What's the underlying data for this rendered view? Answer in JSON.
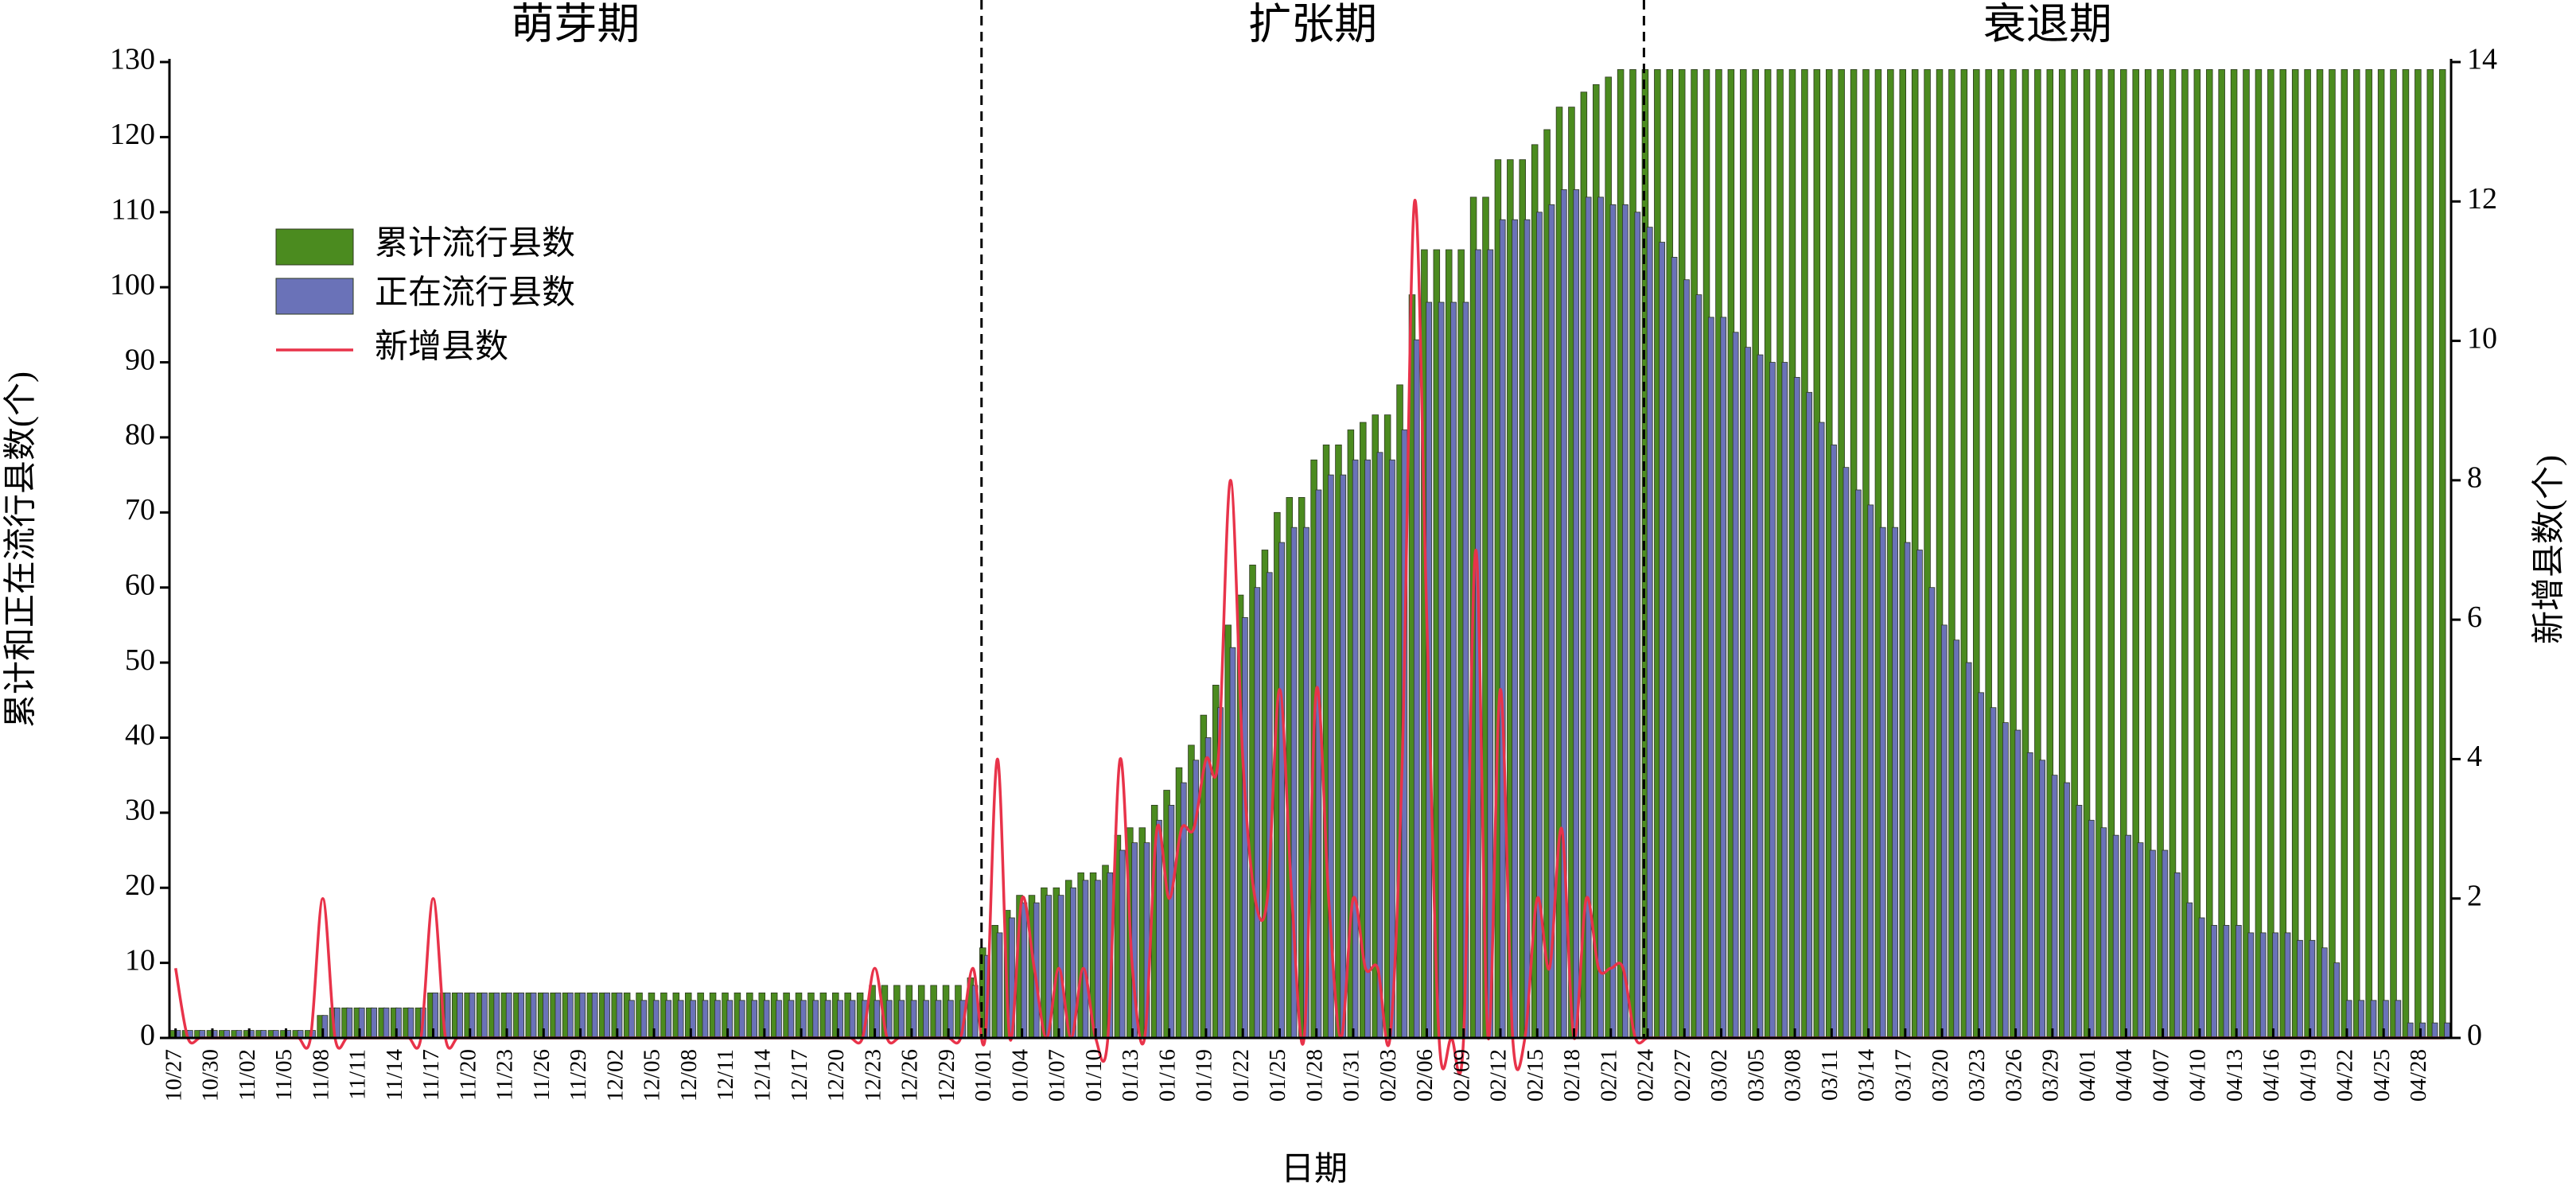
{
  "chart_data": {
    "type": "bar",
    "x_label": "日期",
    "y_label": "累计和正在流行县数(个)",
    "y2_label": "新增县数(个)",
    "legend": "upper left",
    "phases": [
      {
        "label": "萌芽期",
        "from": "10/27"
      },
      {
        "label": "扩张期",
        "from": "01/01"
      },
      {
        "label": "衰退期",
        "from": "02/24"
      }
    ],
    "ylim": [
      0,
      130
    ],
    "yticks": [
      0,
      10,
      20,
      30,
      40,
      50,
      60,
      70,
      80,
      90,
      100,
      110,
      120,
      130
    ],
    "y2lim": [
      0,
      14
    ],
    "y2ticks": [
      0,
      2,
      4,
      6,
      8,
      10,
      12,
      14
    ],
    "categories": [
      "10/27",
      null,
      null,
      "10/30",
      null,
      null,
      "11/02",
      null,
      null,
      "11/05",
      null,
      null,
      "11/08",
      null,
      null,
      "11/11",
      null,
      null,
      "11/14",
      null,
      null,
      "11/17",
      null,
      null,
      "11/20",
      null,
      null,
      "11/23",
      null,
      null,
      "11/26",
      null,
      null,
      "11/29",
      null,
      null,
      "12/02",
      null,
      null,
      "12/05",
      null,
      null,
      "12/08",
      null,
      null,
      "12/11",
      null,
      null,
      "12/14",
      null,
      null,
      "12/17",
      null,
      null,
      "12/20",
      null,
      null,
      "12/23",
      null,
      null,
      "12/26",
      null,
      null,
      "12/29",
      null,
      null,
      "01/01",
      null,
      null,
      "01/04",
      null,
      null,
      "01/07",
      null,
      null,
      "01/10",
      null,
      null,
      "01/13",
      null,
      null,
      "01/16",
      null,
      null,
      "01/19",
      null,
      null,
      "01/22",
      null,
      null,
      "01/25",
      null,
      null,
      "01/28",
      null,
      null,
      "01/31",
      null,
      null,
      "02/03",
      null,
      null,
      "02/06",
      null,
      null,
      "02/09",
      null,
      null,
      "02/12",
      null,
      null,
      "02/15",
      null,
      null,
      "02/18",
      null,
      null,
      "02/21",
      null,
      null,
      "02/24",
      null,
      null,
      "02/27",
      null,
      null,
      "03/02",
      null,
      null,
      "03/05",
      null,
      null,
      "03/08",
      null,
      null,
      "03/11",
      null,
      null,
      "03/14",
      null,
      null,
      "03/17",
      null,
      null,
      "03/20",
      null,
      null,
      "03/23",
      null,
      null,
      "03/26",
      null,
      null,
      "03/29",
      null,
      null,
      "04/01",
      null,
      null,
      "04/04",
      null,
      null,
      "04/07",
      null,
      null,
      "04/10",
      null,
      null,
      "04/13",
      null,
      null,
      "04/16",
      null,
      null,
      "04/19",
      null,
      null,
      "04/22",
      null,
      null,
      "04/25",
      null,
      null,
      "04/28",
      null,
      null
    ],
    "series": [
      {
        "name": "累计流行县数",
        "type": "bar",
        "color": "#4b8b1f",
        "values": [
          1,
          1,
          1,
          1,
          1,
          1,
          1,
          1,
          1,
          1,
          1,
          1,
          3,
          4,
          4,
          4,
          4,
          4,
          4,
          4,
          4,
          6,
          6,
          6,
          6,
          6,
          6,
          6,
          6,
          6,
          6,
          6,
          6,
          6,
          6,
          6,
          6,
          6,
          6,
          6,
          6,
          6,
          6,
          6,
          6,
          6,
          6,
          6,
          6,
          6,
          6,
          6,
          6,
          6,
          6,
          6,
          6,
          7,
          7,
          7,
          7,
          7,
          7,
          7,
          7,
          8,
          12,
          15,
          17,
          19,
          19,
          20,
          20,
          21,
          22,
          22,
          23,
          27,
          28,
          28,
          31,
          33,
          36,
          39,
          43,
          47,
          55,
          59,
          63,
          65,
          70,
          72,
          72,
          77,
          79,
          79,
          81,
          82,
          83,
          83,
          87,
          99,
          105,
          105,
          105,
          105,
          112,
          112,
          117,
          117,
          117,
          119,
          121,
          124,
          124,
          126,
          127,
          128,
          129,
          129,
          129,
          129,
          129,
          129,
          129,
          129,
          129,
          129,
          129,
          129,
          129,
          129,
          129,
          129,
          129,
          129,
          129,
          129,
          129,
          129,
          129,
          129,
          129,
          129,
          129,
          129,
          129,
          129,
          129,
          129,
          129,
          129,
          129,
          129,
          129,
          129,
          129,
          129,
          129,
          129,
          129,
          129,
          129,
          129,
          129,
          129,
          129,
          129,
          129,
          129,
          129,
          129,
          129,
          129,
          129,
          129,
          129,
          129,
          129,
          129,
          129,
          129,
          129,
          129,
          129,
          129
        ]
      },
      {
        "name": "正在流行县数",
        "type": "bar",
        "color": "#6a72b8",
        "values": [
          1,
          1,
          1,
          1,
          1,
          1,
          1,
          1,
          1,
          1,
          1,
          1,
          3,
          4,
          4,
          4,
          4,
          4,
          4,
          4,
          4,
          6,
          6,
          6,
          6,
          6,
          6,
          6,
          6,
          6,
          6,
          6,
          6,
          6,
          6,
          6,
          6,
          5,
          5,
          5,
          5,
          5,
          5,
          5,
          5,
          5,
          5,
          5,
          5,
          5,
          5,
          5,
          5,
          5,
          5,
          5,
          5,
          5,
          5,
          5,
          5,
          5,
          5,
          5,
          5,
          7,
          11,
          14,
          16,
          18,
          18,
          19,
          19,
          20,
          21,
          21,
          22,
          25,
          26,
          26,
          29,
          31,
          34,
          37,
          40,
          44,
          52,
          56,
          60,
          62,
          66,
          68,
          68,
          73,
          75,
          75,
          77,
          77,
          78,
          77,
          81,
          93,
          98,
          98,
          98,
          98,
          105,
          105,
          109,
          109,
          109,
          110,
          111,
          113,
          113,
          112,
          112,
          111,
          111,
          110,
          108,
          106,
          104,
          101,
          99,
          96,
          96,
          94,
          92,
          91,
          90,
          90,
          88,
          86,
          82,
          79,
          76,
          73,
          71,
          68,
          68,
          66,
          65,
          60,
          55,
          53,
          50,
          46,
          44,
          42,
          41,
          38,
          37,
          35,
          34,
          31,
          29,
          28,
          27,
          27,
          26,
          25,
          25,
          22,
          18,
          16,
          15,
          15,
          15,
          14,
          14,
          14,
          14,
          13,
          13,
          12,
          10,
          5,
          5,
          5,
          5,
          5,
          2,
          2,
          2,
          2
        ]
      },
      {
        "name": "新增县数",
        "type": "line",
        "axis": "y2",
        "color": "#e8334a",
        "values": [
          1,
          0,
          0,
          0,
          0,
          0,
          0,
          0,
          0,
          0,
          0,
          0,
          2,
          0,
          0,
          0,
          0,
          0,
          0,
          0,
          0,
          2,
          0,
          0,
          0,
          0,
          0,
          0,
          0,
          0,
          0,
          0,
          0,
          0,
          0,
          0,
          0,
          0,
          0,
          0,
          0,
          0,
          0,
          0,
          0,
          0,
          0,
          0,
          0,
          0,
          0,
          0,
          0,
          0,
          0,
          0,
          0,
          1,
          0,
          0,
          0,
          0,
          0,
          0,
          0,
          1,
          0,
          4,
          0,
          2,
          1,
          0,
          1,
          0,
          1,
          0,
          0,
          4,
          1,
          0,
          3,
          2,
          3,
          3,
          4,
          4,
          8,
          4,
          2,
          2,
          5,
          2,
          0,
          5,
          2,
          0,
          2,
          1,
          1,
          0,
          4,
          12,
          6,
          0,
          0,
          0,
          7,
          0,
          5,
          0,
          0,
          2,
          1,
          3,
          0,
          2,
          1,
          1,
          1,
          0,
          0,
          0,
          0,
          0,
          0,
          0,
          0,
          0,
          0,
          0,
          0,
          0,
          0,
          0,
          0,
          0,
          0,
          0,
          0,
          0,
          0,
          0,
          0,
          0,
          0,
          0,
          0,
          0,
          0,
          0,
          0,
          0,
          0,
          0,
          0,
          0,
          0,
          0,
          0,
          0,
          0,
          0,
          0,
          0,
          0,
          0,
          0,
          0,
          0,
          0,
          0,
          0,
          0,
          0,
          0,
          0,
          0,
          0,
          0,
          0,
          0,
          0,
          0,
          0,
          0,
          0
        ]
      }
    ]
  }
}
